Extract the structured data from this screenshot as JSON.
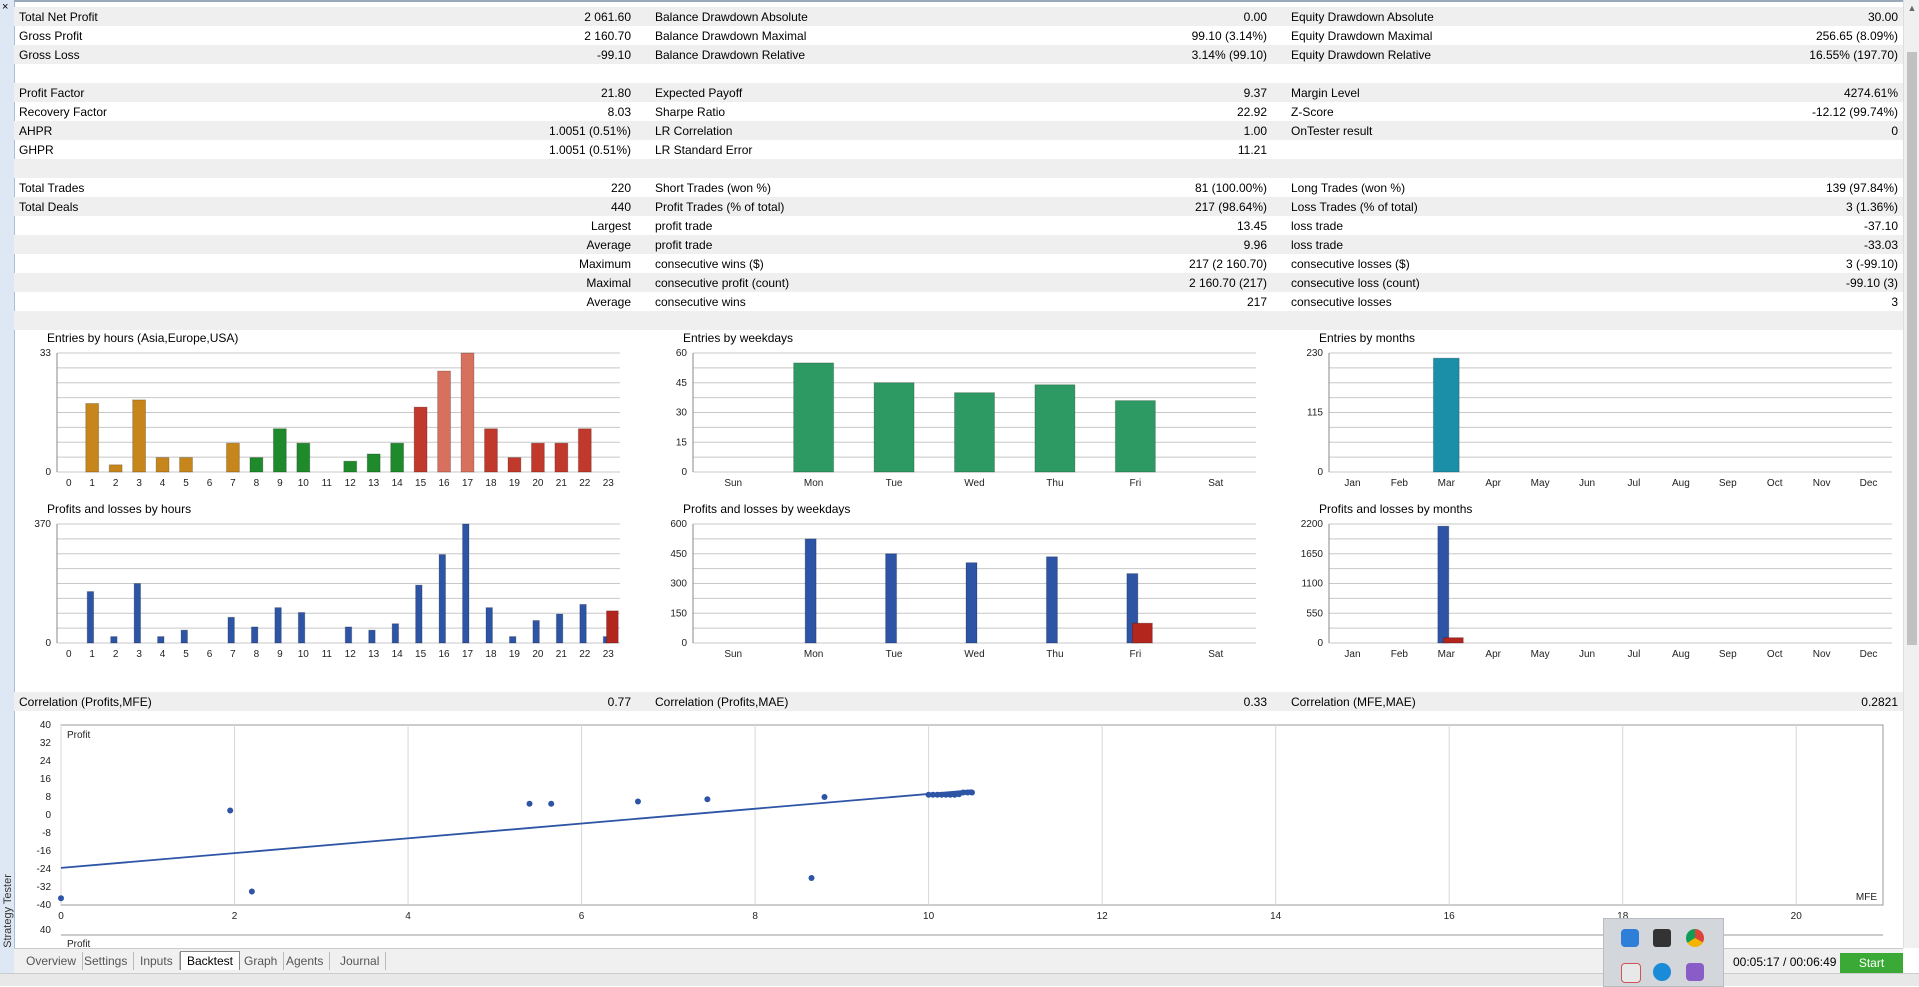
{
  "window": {
    "side_label": "Strategy Tester",
    "close_glyph": "×"
  },
  "stats_rows": [
    {
      "shade": true,
      "c1": [
        "Total Net Profit",
        "2 061.60"
      ],
      "c2": [
        "Balance Drawdown Absolute",
        "0.00"
      ],
      "c3": [
        "Equity Drawdown Absolute",
        "30.00"
      ]
    },
    {
      "shade": false,
      "c1": [
        "Gross Profit",
        "2 160.70"
      ],
      "c2": [
        "Balance Drawdown Maximal",
        "99.10 (3.14%)"
      ],
      "c3": [
        "Equity Drawdown Maximal",
        "256.65 (8.09%)"
      ]
    },
    {
      "shade": true,
      "c1": [
        "Gross Loss",
        "-99.10"
      ],
      "c2": [
        "Balance Drawdown Relative",
        "3.14% (99.10)"
      ],
      "c3": [
        "Equity Drawdown Relative",
        "16.55% (197.70)"
      ]
    },
    {
      "shade": false,
      "c1": [
        "",
        ""
      ],
      "c2": [
        "",
        ""
      ],
      "c3": [
        "",
        ""
      ]
    },
    {
      "shade": true,
      "c1": [
        "Profit Factor",
        "21.80"
      ],
      "c2": [
        "Expected Payoff",
        "9.37"
      ],
      "c3": [
        "Margin Level",
        "4274.61%"
      ]
    },
    {
      "shade": false,
      "c1": [
        "Recovery Factor",
        "8.03"
      ],
      "c2": [
        "Sharpe Ratio",
        "22.92"
      ],
      "c3": [
        "Z-Score",
        "-12.12 (99.74%)"
      ]
    },
    {
      "shade": true,
      "c1": [
        "AHPR",
        "1.0051 (0.51%)"
      ],
      "c2": [
        "LR Correlation",
        "1.00"
      ],
      "c3": [
        "OnTester result",
        "0"
      ]
    },
    {
      "shade": false,
      "c1": [
        "GHPR",
        "1.0051 (0.51%)"
      ],
      "c2": [
        "LR Standard Error",
        "11.21"
      ],
      "c3": [
        "",
        ""
      ]
    },
    {
      "shade": true,
      "c1": [
        "",
        ""
      ],
      "c2": [
        "",
        ""
      ],
      "c3": [
        "",
        ""
      ]
    },
    {
      "shade": false,
      "c1": [
        "Total Trades",
        "220"
      ],
      "c2": [
        "Short Trades (won %)",
        "81 (100.00%)"
      ],
      "c3": [
        "Long Trades (won %)",
        "139 (97.84%)"
      ]
    },
    {
      "shade": true,
      "c1": [
        "Total Deals",
        "440"
      ],
      "c2": [
        "Profit Trades (% of total)",
        "217 (98.64%)"
      ],
      "c3": [
        "Loss Trades (% of total)",
        "3 (1.36%)"
      ]
    },
    {
      "shade": false,
      "r1": "Largest",
      "c2": [
        "profit trade",
        "13.45"
      ],
      "c3": [
        "loss trade",
        "-37.10"
      ]
    },
    {
      "shade": true,
      "r1": "Average",
      "c2": [
        "profit trade",
        "9.96"
      ],
      "c3": [
        "loss trade",
        "-33.03"
      ]
    },
    {
      "shade": false,
      "r1": "Maximum",
      "c2": [
        "consecutive wins ($)",
        "217 (2 160.70)"
      ],
      "c3": [
        "consecutive losses ($)",
        "3 (-99.10)"
      ]
    },
    {
      "shade": true,
      "r1": "Maximal",
      "c2": [
        "consecutive profit (count)",
        "2 160.70 (217)"
      ],
      "c3": [
        "consecutive loss (count)",
        "-99.10 (3)"
      ]
    },
    {
      "shade": false,
      "r1": "Average",
      "c2": [
        "consecutive wins",
        "217"
      ],
      "c3": [
        "consecutive losses",
        "3"
      ]
    },
    {
      "shade": true,
      "c1": [
        "",
        ""
      ],
      "c2": [
        "",
        ""
      ],
      "c3": [
        "",
        ""
      ]
    }
  ],
  "chart_data": [
    {
      "id": "entries-hours",
      "type": "bar",
      "title": "Entries by hours (Asia,Europe,USA)",
      "ylim": [
        0,
        33
      ],
      "yticks": [
        0,
        33
      ],
      "categories": [
        "0",
        "1",
        "2",
        "3",
        "4",
        "5",
        "6",
        "7",
        "8",
        "9",
        "10",
        "11",
        "12",
        "13",
        "14",
        "15",
        "16",
        "17",
        "18",
        "19",
        "20",
        "21",
        "22",
        "23"
      ],
      "values": [
        0,
        19,
        2,
        20,
        4,
        4,
        0,
        8,
        4,
        12,
        8,
        0,
        3,
        5,
        8,
        18,
        28,
        33,
        12,
        4,
        8,
        8,
        12,
        0
      ],
      "colors": [
        "#c7861c",
        "#c7861c",
        "#c7861c",
        "#c7861c",
        "#c7861c",
        "#c7861c",
        "#c7861c",
        "#c7861c",
        "#1f8a2c",
        "#1f8a2c",
        "#1f8a2c",
        "#1f8a2c",
        "#1f8a2c",
        "#1f8a2c",
        "#1f8a2c",
        "#c0392b",
        "#d8705e",
        "#d8705e",
        "#c0392b",
        "#c0392b",
        "#c0392b",
        "#c0392b",
        "#c0392b",
        "#c0392b"
      ]
    },
    {
      "id": "entries-weekdays",
      "type": "bar",
      "title": "Entries by weekdays",
      "ylim": [
        0,
        60
      ],
      "yticks": [
        0,
        15,
        30,
        45,
        60
      ],
      "categories": [
        "Sun",
        "Mon",
        "Tue",
        "Wed",
        "Thu",
        "Fri",
        "Sat"
      ],
      "values": [
        0,
        55,
        45,
        40,
        44,
        36,
        0
      ],
      "color": "#2e9a63"
    },
    {
      "id": "entries-months",
      "type": "bar",
      "title": "Entries by months",
      "ylim": [
        0,
        230
      ],
      "yticks": [
        0,
        115,
        230
      ],
      "categories": [
        "Jan",
        "Feb",
        "Mar",
        "Apr",
        "May",
        "Jun",
        "Jul",
        "Aug",
        "Sep",
        "Oct",
        "Nov",
        "Dec"
      ],
      "values": [
        0,
        0,
        220,
        0,
        0,
        0,
        0,
        0,
        0,
        0,
        0,
        0
      ],
      "color": "#1c8fa8"
    },
    {
      "id": "pl-hours",
      "type": "bar",
      "title": "Profits and losses by hours",
      "ylim": [
        0,
        370
      ],
      "yticks": [
        0,
        370
      ],
      "categories": [
        "0",
        "1",
        "2",
        "3",
        "4",
        "5",
        "6",
        "7",
        "8",
        "9",
        "10",
        "11",
        "12",
        "13",
        "14",
        "15",
        "16",
        "17",
        "18",
        "19",
        "20",
        "21",
        "22",
        "23"
      ],
      "series": [
        {
          "values": [
            0,
            160,
            20,
            185,
            20,
            40,
            0,
            80,
            50,
            110,
            95,
            0,
            50,
            40,
            60,
            180,
            275,
            370,
            110,
            20,
            70,
            90,
            120,
            20
          ],
          "color": "#2d54a5"
        },
        {
          "values": [
            0,
            0,
            0,
            0,
            0,
            0,
            0,
            0,
            0,
            0,
            0,
            0,
            0,
            0,
            0,
            0,
            0,
            0,
            0,
            0,
            0,
            0,
            0,
            100
          ],
          "color": "#b3261e"
        }
      ]
    },
    {
      "id": "pl-weekdays",
      "type": "bar",
      "title": "Profits and losses by weekdays",
      "ylim": [
        0,
        600
      ],
      "yticks": [
        0,
        150,
        300,
        450,
        600
      ],
      "categories": [
        "Sun",
        "Mon",
        "Tue",
        "Wed",
        "Thu",
        "Fri",
        "Sat"
      ],
      "series": [
        {
          "values": [
            0,
            525,
            450,
            405,
            435,
            350,
            0
          ],
          "color": "#2d54a5"
        },
        {
          "values": [
            0,
            0,
            0,
            0,
            0,
            100,
            0
          ],
          "color": "#b3261e"
        }
      ]
    },
    {
      "id": "pl-months",
      "type": "bar",
      "title": "Profits and losses by months",
      "ylim": [
        0,
        2200
      ],
      "yticks": [
        0,
        550,
        1100,
        1650,
        2200
      ],
      "categories": [
        "Jan",
        "Feb",
        "Mar",
        "Apr",
        "May",
        "Jun",
        "Jul",
        "Aug",
        "Sep",
        "Oct",
        "Nov",
        "Dec"
      ],
      "series": [
        {
          "values": [
            0,
            0,
            2160,
            0,
            0,
            0,
            0,
            0,
            0,
            0,
            0,
            0
          ],
          "color": "#2d54a5"
        },
        {
          "values": [
            0,
            0,
            99,
            0,
            0,
            0,
            0,
            0,
            0,
            0,
            0,
            0
          ],
          "color": "#b3261e"
        }
      ]
    },
    {
      "id": "scatter-mfe",
      "type": "scatter",
      "ylabel": "Profit",
      "xlabel": "MFE",
      "xlim": [
        0,
        21
      ],
      "ylim": [
        -40,
        40
      ],
      "xticks": [
        0,
        2,
        4,
        6,
        8,
        10,
        12,
        14,
        16,
        18,
        20
      ],
      "yticks": [
        40,
        32,
        24,
        16,
        8,
        0,
        -8,
        -16,
        -24,
        -32,
        -40
      ],
      "points": [
        [
          0,
          -37
        ],
        [
          1.95,
          2
        ],
        [
          2.2,
          -34
        ],
        [
          5.4,
          5
        ],
        [
          5.65,
          5
        ],
        [
          6.65,
          6
        ],
        [
          7.45,
          7
        ],
        [
          8.65,
          -28
        ],
        [
          8.8,
          8
        ],
        [
          10.0,
          9
        ],
        [
          10.05,
          9
        ],
        [
          10.1,
          9
        ],
        [
          10.15,
          9
        ],
        [
          10.2,
          9
        ],
        [
          10.25,
          9
        ],
        [
          10.3,
          9
        ],
        [
          10.35,
          9.2
        ],
        [
          10.4,
          10
        ],
        [
          10.45,
          10
        ],
        [
          10.5,
          10
        ]
      ],
      "trend": [
        [
          0,
          -23.5
        ],
        [
          10.5,
          11
        ]
      ],
      "color": "#2d54a5"
    }
  ],
  "correlation": {
    "profits_mfe_label": "Correlation (Profits,MFE)",
    "profits_mfe_value": "0.77",
    "profits_mae_label": "Correlation (Profits,MAE)",
    "profits_mae_value": "0.33",
    "mfe_mae_label": "Correlation (MFE,MAE)",
    "mfe_mae_value": "0.2821"
  },
  "second_scatter": {
    "ylabel": "Profit",
    "ytop": "40"
  },
  "tabs": [
    "Overview",
    "Settings",
    "Inputs",
    "Backtest",
    "Graph",
    "Agents",
    "Journal"
  ],
  "active_tab": "Backtest",
  "timer": "00:05:17 / 00:06:49",
  "start_label": "Start"
}
